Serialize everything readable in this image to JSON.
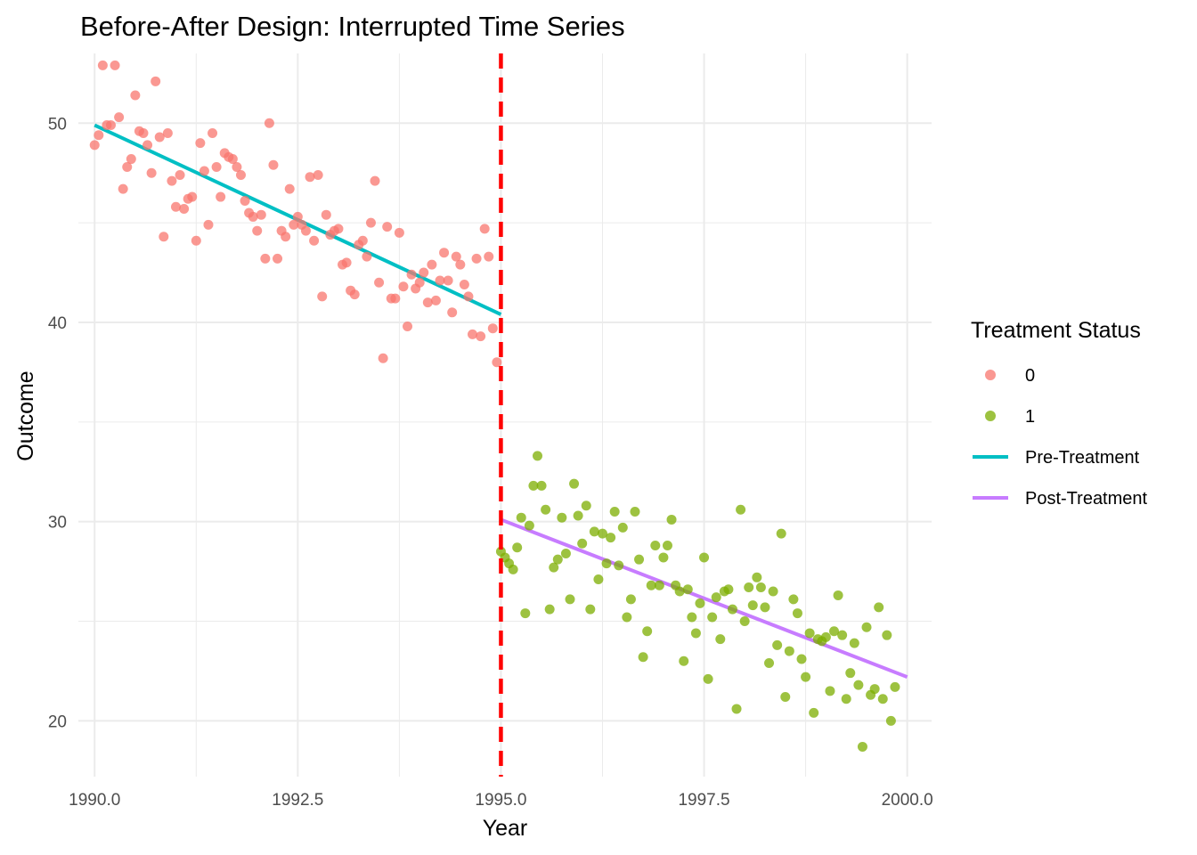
{
  "chart_data": {
    "type": "scatter",
    "title": "Before-After Design: Interrupted Time Series",
    "xlabel": "Year",
    "ylabel": "Outcome",
    "xlim": [
      1989.8,
      2000.3
    ],
    "ylim": [
      17.2,
      53.5
    ],
    "x_ticks": [
      1990.0,
      1992.5,
      1995.0,
      1997.5,
      2000.0
    ],
    "x_tick_labels": [
      "1990.0",
      "1992.5",
      "1995.0",
      "1997.5",
      "2000.0"
    ],
    "y_ticks": [
      20,
      30,
      40,
      50
    ],
    "y_tick_labels": [
      "20",
      "30",
      "40",
      "50"
    ],
    "grid": true,
    "legend": {
      "title": "Treatment Status",
      "placement": "right",
      "entries": [
        {
          "label": "0",
          "kind": "point",
          "color": "#F8766D"
        },
        {
          "label": "1",
          "kind": "point",
          "color": "#7CAE00"
        },
        {
          "label": "Pre-Treatment",
          "kind": "line",
          "color": "#00BFC4"
        },
        {
          "label": "Post-Treatment",
          "kind": "line",
          "color": "#C77CFF"
        }
      ]
    },
    "intervention": {
      "x": 1995.0,
      "color": "#FF0000",
      "style": "dashed"
    },
    "series": [
      {
        "name": "0",
        "kind": "points",
        "color": "#F8766D",
        "points": [
          [
            1990.0,
            48.9
          ],
          [
            1990.05,
            49.4
          ],
          [
            1990.1,
            52.9
          ],
          [
            1990.15,
            49.9
          ],
          [
            1990.2,
            49.9
          ],
          [
            1990.25,
            52.9
          ],
          [
            1990.3,
            50.3
          ],
          [
            1990.35,
            46.7
          ],
          [
            1990.4,
            47.8
          ],
          [
            1990.45,
            48.2
          ],
          [
            1990.5,
            51.4
          ],
          [
            1990.55,
            49.6
          ],
          [
            1990.6,
            49.5
          ],
          [
            1990.65,
            48.9
          ],
          [
            1990.7,
            47.5
          ],
          [
            1990.75,
            52.1
          ],
          [
            1990.8,
            49.3
          ],
          [
            1990.85,
            44.3
          ],
          [
            1990.9,
            49.5
          ],
          [
            1990.95,
            47.1
          ],
          [
            1991.0,
            45.8
          ],
          [
            1991.05,
            47.4
          ],
          [
            1991.1,
            45.7
          ],
          [
            1991.15,
            46.2
          ],
          [
            1991.2,
            46.3
          ],
          [
            1991.25,
            44.1
          ],
          [
            1991.3,
            49.0
          ],
          [
            1991.35,
            47.6
          ],
          [
            1991.4,
            44.9
          ],
          [
            1991.45,
            49.5
          ],
          [
            1991.5,
            47.8
          ],
          [
            1991.55,
            46.3
          ],
          [
            1991.6,
            48.5
          ],
          [
            1991.65,
            48.3
          ],
          [
            1991.7,
            48.2
          ],
          [
            1991.75,
            47.8
          ],
          [
            1991.8,
            47.4
          ],
          [
            1991.85,
            46.1
          ],
          [
            1991.9,
            45.5
          ],
          [
            1991.95,
            45.3
          ],
          [
            1992.0,
            44.6
          ],
          [
            1992.05,
            45.4
          ],
          [
            1992.1,
            43.2
          ],
          [
            1992.15,
            50.0
          ],
          [
            1992.2,
            47.9
          ],
          [
            1992.25,
            43.2
          ],
          [
            1992.3,
            44.6
          ],
          [
            1992.35,
            44.3
          ],
          [
            1992.4,
            46.7
          ],
          [
            1992.45,
            44.9
          ],
          [
            1992.5,
            45.3
          ],
          [
            1992.55,
            44.9
          ],
          [
            1992.6,
            44.6
          ],
          [
            1992.65,
            47.3
          ],
          [
            1992.7,
            44.1
          ],
          [
            1992.75,
            47.4
          ],
          [
            1992.8,
            41.3
          ],
          [
            1992.85,
            45.4
          ],
          [
            1992.9,
            44.4
          ],
          [
            1992.95,
            44.6
          ],
          [
            1993.0,
            44.7
          ],
          [
            1993.05,
            42.9
          ],
          [
            1993.1,
            43.0
          ],
          [
            1993.15,
            41.6
          ],
          [
            1993.2,
            41.4
          ],
          [
            1993.25,
            43.9
          ],
          [
            1993.3,
            44.1
          ],
          [
            1993.35,
            43.3
          ],
          [
            1993.4,
            45.0
          ],
          [
            1993.45,
            47.1
          ],
          [
            1993.5,
            42.0
          ],
          [
            1993.55,
            38.2
          ],
          [
            1993.6,
            44.8
          ],
          [
            1993.65,
            41.2
          ],
          [
            1993.7,
            41.2
          ],
          [
            1993.75,
            44.5
          ],
          [
            1993.8,
            41.8
          ],
          [
            1993.85,
            39.8
          ],
          [
            1993.9,
            42.4
          ],
          [
            1993.95,
            41.7
          ],
          [
            1994.0,
            42.0
          ],
          [
            1994.05,
            42.5
          ],
          [
            1994.1,
            41.0
          ],
          [
            1994.15,
            42.9
          ],
          [
            1994.2,
            41.1
          ],
          [
            1994.25,
            42.1
          ],
          [
            1994.3,
            43.5
          ],
          [
            1994.35,
            42.1
          ],
          [
            1994.4,
            40.5
          ],
          [
            1994.45,
            43.3
          ],
          [
            1994.5,
            42.9
          ],
          [
            1994.55,
            41.9
          ],
          [
            1994.6,
            41.3
          ],
          [
            1994.65,
            39.4
          ],
          [
            1994.7,
            43.2
          ],
          [
            1994.75,
            39.3
          ],
          [
            1994.8,
            44.7
          ],
          [
            1994.85,
            43.3
          ],
          [
            1994.9,
            39.7
          ],
          [
            1994.95,
            38.0
          ]
        ]
      },
      {
        "name": "1",
        "kind": "points",
        "color": "#7CAE00",
        "points": [
          [
            1995.0,
            28.5
          ],
          [
            1995.05,
            28.2
          ],
          [
            1995.1,
            27.9
          ],
          [
            1995.15,
            27.6
          ],
          [
            1995.2,
            28.7
          ],
          [
            1995.25,
            30.2
          ],
          [
            1995.3,
            25.4
          ],
          [
            1995.35,
            29.8
          ],
          [
            1995.4,
            31.8
          ],
          [
            1995.45,
            33.3
          ],
          [
            1995.5,
            31.8
          ],
          [
            1995.55,
            30.6
          ],
          [
            1995.6,
            25.6
          ],
          [
            1995.65,
            27.7
          ],
          [
            1995.7,
            28.1
          ],
          [
            1995.75,
            30.2
          ],
          [
            1995.8,
            28.4
          ],
          [
            1995.85,
            26.1
          ],
          [
            1995.9,
            31.9
          ],
          [
            1995.95,
            30.3
          ],
          [
            1996.0,
            28.9
          ],
          [
            1996.05,
            30.8
          ],
          [
            1996.1,
            25.6
          ],
          [
            1996.15,
            29.5
          ],
          [
            1996.2,
            27.1
          ],
          [
            1996.25,
            29.4
          ],
          [
            1996.3,
            27.9
          ],
          [
            1996.35,
            29.2
          ],
          [
            1996.4,
            30.5
          ],
          [
            1996.45,
            27.8
          ],
          [
            1996.5,
            29.7
          ],
          [
            1996.55,
            25.2
          ],
          [
            1996.6,
            26.1
          ],
          [
            1996.65,
            30.5
          ],
          [
            1996.7,
            28.1
          ],
          [
            1996.75,
            23.2
          ],
          [
            1996.8,
            24.5
          ],
          [
            1996.85,
            26.8
          ],
          [
            1996.9,
            28.8
          ],
          [
            1996.95,
            26.8
          ],
          [
            1997.0,
            28.2
          ],
          [
            1997.05,
            28.8
          ],
          [
            1997.1,
            30.1
          ],
          [
            1997.15,
            26.8
          ],
          [
            1997.2,
            26.5
          ],
          [
            1997.25,
            23.0
          ],
          [
            1997.3,
            26.6
          ],
          [
            1997.35,
            25.2
          ],
          [
            1997.4,
            24.4
          ],
          [
            1997.45,
            25.9
          ],
          [
            1997.5,
            28.2
          ],
          [
            1997.55,
            22.1
          ],
          [
            1997.6,
            25.2
          ],
          [
            1997.65,
            26.2
          ],
          [
            1997.7,
            24.1
          ],
          [
            1997.75,
            26.5
          ],
          [
            1997.8,
            26.6
          ],
          [
            1997.85,
            25.6
          ],
          [
            1997.9,
            20.6
          ],
          [
            1997.95,
            30.6
          ],
          [
            1998.0,
            25.0
          ],
          [
            1998.05,
            26.7
          ],
          [
            1998.1,
            25.8
          ],
          [
            1998.15,
            27.2
          ],
          [
            1998.2,
            26.7
          ],
          [
            1998.25,
            25.7
          ],
          [
            1998.3,
            22.9
          ],
          [
            1998.35,
            26.5
          ],
          [
            1998.4,
            23.8
          ],
          [
            1998.45,
            29.4
          ],
          [
            1998.5,
            21.2
          ],
          [
            1998.55,
            23.5
          ],
          [
            1998.6,
            26.1
          ],
          [
            1998.65,
            25.4
          ],
          [
            1998.7,
            23.1
          ],
          [
            1998.75,
            22.2
          ],
          [
            1998.8,
            24.4
          ],
          [
            1998.85,
            20.4
          ],
          [
            1998.9,
            24.1
          ],
          [
            1998.95,
            24.0
          ],
          [
            1999.0,
            24.2
          ],
          [
            1999.05,
            21.5
          ],
          [
            1999.1,
            24.5
          ],
          [
            1999.15,
            26.3
          ],
          [
            1999.2,
            24.3
          ],
          [
            1999.25,
            21.1
          ],
          [
            1999.3,
            22.4
          ],
          [
            1999.35,
            23.9
          ],
          [
            1999.4,
            21.8
          ],
          [
            1999.45,
            18.7
          ],
          [
            1999.5,
            24.7
          ],
          [
            1999.55,
            21.3
          ],
          [
            1999.6,
            21.6
          ],
          [
            1999.65,
            25.7
          ],
          [
            1999.7,
            21.1
          ],
          [
            1999.75,
            24.3
          ],
          [
            1999.8,
            20.0
          ],
          [
            1999.85,
            21.7
          ]
        ]
      },
      {
        "name": "Pre-Treatment",
        "kind": "line",
        "color": "#00BFC4",
        "points": [
          [
            1990.0,
            49.9
          ],
          [
            1995.0,
            40.4
          ]
        ]
      },
      {
        "name": "Post-Treatment",
        "kind": "line",
        "color": "#C77CFF",
        "points": [
          [
            1995.0,
            30.1
          ],
          [
            2000.0,
            22.2
          ]
        ]
      }
    ]
  }
}
